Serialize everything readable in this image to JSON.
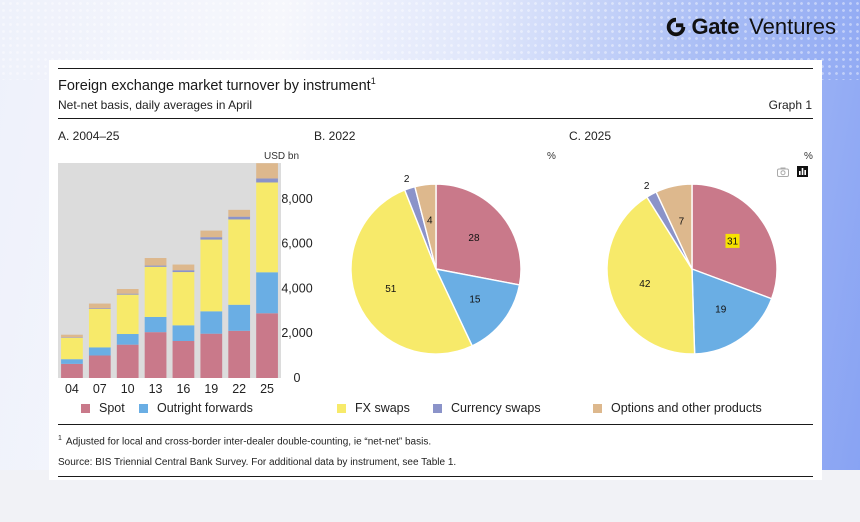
{
  "brand": {
    "name_bold": "Gate",
    "name_light": "Ventures"
  },
  "header": {
    "title": "Foreign exchange market turnover by instrument",
    "title_sup": "1",
    "subtitle": "Net-net basis, daily averages in April",
    "graph_label": "Graph 1"
  },
  "colors": {
    "spot": "#c9798a",
    "outright_forwards": "#6aaee4",
    "fx_swaps": "#f7ea6a",
    "currency_swaps": "#8b93c9",
    "options": "#ddb88d",
    "plot_bg": "#dcdcdc"
  },
  "chart_data": [
    {
      "type": "bar",
      "panel_title": "A. 2004–25",
      "unit": "USD bn",
      "stacked": true,
      "categories": [
        "04",
        "07",
        "10",
        "13",
        "16",
        "19",
        "22",
        "25"
      ],
      "series": [
        {
          "name": "Spot",
          "key": "spot",
          "values": [
            631,
            1005,
            1489,
            2047,
            1652,
            1979,
            2107,
            2890
          ]
        },
        {
          "name": "Outright forwards",
          "key": "outright_forwards",
          "values": [
            209,
            362,
            475,
            679,
            700,
            999,
            1163,
            1830
          ]
        },
        {
          "name": "FX swaps",
          "key": "fx_swaps",
          "values": [
            954,
            1714,
            1759,
            2240,
            2378,
            3202,
            3810,
            4010
          ]
        },
        {
          "name": "Currency swaps",
          "key": "currency_swaps",
          "values": [
            21,
            31,
            43,
            54,
            82,
            108,
            124,
            180
          ]
        },
        {
          "name": "Options and other products",
          "key": "options",
          "values": [
            119,
            212,
            207,
            337,
            254,
            294,
            304,
            680
          ]
        }
      ],
      "yticks": [
        "8,000",
        "6,000",
        "4,000",
        "2,000",
        "0"
      ],
      "ytick_values": [
        8000,
        6000,
        4000,
        2000,
        0
      ],
      "ylim": [
        0,
        9600
      ],
      "grid": false,
      "legend": "bottom"
    },
    {
      "type": "pie",
      "panel_title": "B. 2022",
      "unit": "%",
      "slices": [
        {
          "name": "Spot",
          "key": "spot",
          "value": 28,
          "label": "28"
        },
        {
          "name": "Outright forwards",
          "key": "outright_forwards",
          "value": 15,
          "label": "15"
        },
        {
          "name": "FX swaps",
          "key": "fx_swaps",
          "value": 51,
          "label": "51"
        },
        {
          "name": "Currency swaps",
          "key": "currency_swaps",
          "value": 2,
          "label": "2"
        },
        {
          "name": "Options and other products",
          "key": "options",
          "value": 4,
          "label": "4"
        }
      ]
    },
    {
      "type": "pie",
      "panel_title": "C. 2025",
      "unit": "%",
      "slices": [
        {
          "name": "Spot",
          "key": "spot",
          "value": 31,
          "label": "31",
          "highlight": true
        },
        {
          "name": "Outright forwards",
          "key": "outright_forwards",
          "value": 19,
          "label": "19"
        },
        {
          "name": "FX swaps",
          "key": "fx_swaps",
          "value": 42,
          "label": "42"
        },
        {
          "name": "Currency swaps",
          "key": "currency_swaps",
          "value": 2,
          "label": "2"
        },
        {
          "name": "Options and other products",
          "key": "options",
          "value": 7,
          "label": "7"
        }
      ]
    }
  ],
  "legend": [
    {
      "label": "Spot",
      "key": "spot"
    },
    {
      "label": "Outright forwards",
      "key": "outright_forwards"
    },
    {
      "label": "FX swaps",
      "key": "fx_swaps"
    },
    {
      "label": "Currency swaps",
      "key": "currency_swaps"
    },
    {
      "label": "Options and other products",
      "key": "options"
    }
  ],
  "footnote": {
    "marker": "1",
    "text": "Adjusted for local and cross-border inter-dealer double-counting, ie “net-net” basis."
  },
  "source": "Source: BIS Triennial Central Bank Survey. For additional data by instrument, see Table 1.",
  "toolbar": {
    "icons": [
      "camera-icon",
      "bar-chart-icon"
    ]
  }
}
